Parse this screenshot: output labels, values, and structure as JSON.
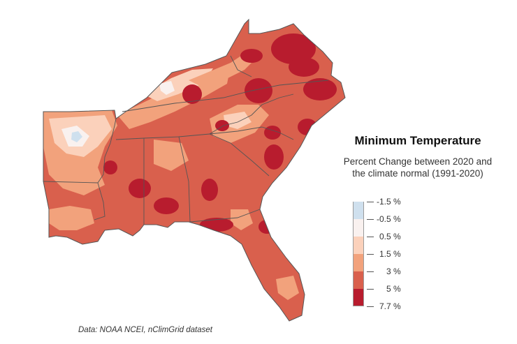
{
  "title": "Minimum Temperature",
  "subtitle_line1": "Percent Change between 2020 and",
  "subtitle_line2": "the climate normal (1991-2020)",
  "source": "Data: NOAA NCEI, nClimGrid dataset",
  "legend": {
    "labels": [
      "-1.5 %",
      "-0.5 %",
      "0.5 %",
      "1.5 %",
      "3 %",
      "5 %",
      "7.7 %"
    ],
    "colors": [
      "#cfe0ee",
      "#f9f1ef",
      "#fbd1bb",
      "#f2a27c",
      "#d9604d",
      "#b81c2e"
    ]
  },
  "map": {
    "region": "Southeastern United States",
    "palette": {
      "base": "#d9604d",
      "light": "#f2a27c",
      "pale": "#fbd1bb",
      "white": "#f9f1ef",
      "blue": "#cfe0ee",
      "dark": "#b81c2e",
      "border": "#555555"
    }
  }
}
